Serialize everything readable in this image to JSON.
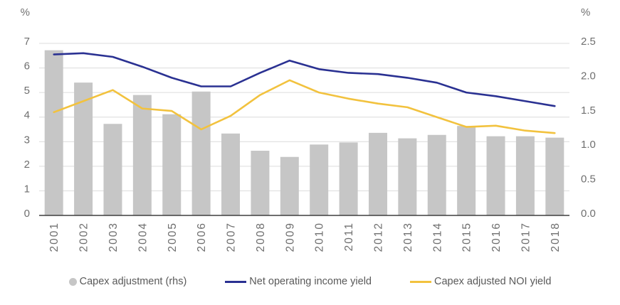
{
  "chart_data": {
    "type": "combo",
    "categories": [
      "2001",
      "2002",
      "2003",
      "2004",
      "2005",
      "2006",
      "2007",
      "2008",
      "2009",
      "2010",
      "2011",
      "2012",
      "2013",
      "2014",
      "2015",
      "2016",
      "2017",
      "2018"
    ],
    "series": [
      {
        "name": "Capex adjustment (rhs)",
        "type": "bar",
        "axis": "right",
        "color": "#c6c6c6",
        "values": [
          2.4,
          1.93,
          1.33,
          1.75,
          1.47,
          1.8,
          1.19,
          0.94,
          0.85,
          1.03,
          1.06,
          1.2,
          1.12,
          1.17,
          1.3,
          1.15,
          1.15,
          1.13
        ]
      },
      {
        "name": "Net operating income yield",
        "type": "line",
        "axis": "left",
        "color": "#2a3192",
        "values": [
          6.55,
          6.6,
          6.45,
          6.05,
          5.6,
          5.25,
          5.25,
          5.8,
          6.3,
          5.95,
          5.8,
          5.75,
          5.6,
          5.4,
          5.0,
          4.85,
          4.65,
          4.45
        ]
      },
      {
        "name": "Capex adjusted NOI yield",
        "type": "line",
        "axis": "left",
        "color": "#f2c23e",
        "values": [
          4.2,
          4.65,
          5.1,
          4.35,
          4.25,
          3.5,
          4.05,
          4.9,
          5.5,
          5.0,
          4.75,
          4.55,
          4.4,
          4.0,
          3.6,
          3.65,
          3.45,
          3.35
        ]
      }
    ],
    "left_axis": {
      "unit": "%",
      "min": 0,
      "max": 7,
      "ticks": [
        {
          "v": 7,
          "label": "7"
        },
        {
          "v": 6,
          "label": "6"
        },
        {
          "v": 5,
          "label": "5"
        },
        {
          "v": 4,
          "label": "4"
        },
        {
          "v": 3,
          "label": "3"
        },
        {
          "v": 2,
          "label": "2"
        },
        {
          "v": 1,
          "label": "1"
        },
        {
          "v": 0,
          "label": "0"
        }
      ]
    },
    "right_axis": {
      "unit": "%",
      "min": 0,
      "max": 2.5,
      "ticks": [
        {
          "v": 2.5,
          "label": "2.5"
        },
        {
          "v": 2.0,
          "label": "2.0"
        },
        {
          "v": 1.5,
          "label": "1.5"
        },
        {
          "v": 1.0,
          "label": "1.0"
        },
        {
          "v": 0.5,
          "label": "0.5"
        },
        {
          "v": 0.0,
          "label": "0.0"
        }
      ]
    },
    "grid": true,
    "legend_position": "bottom",
    "colors": {
      "gridline": "#dcdcdc",
      "axis_line": "#3f3f3f",
      "tick_text": "#6f6f6f",
      "legend_text": "#595959",
      "background": "#ffffff"
    }
  }
}
